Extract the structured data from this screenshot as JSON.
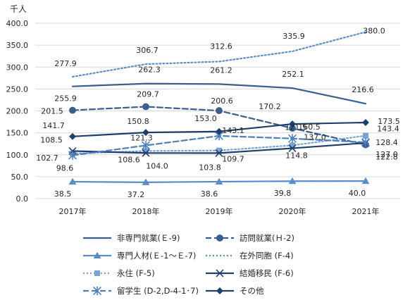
{
  "chart_data": {
    "type": "line",
    "unit_label": "千人",
    "categories": [
      "2017年",
      "2018年",
      "2019年",
      "2020年",
      "2021年"
    ],
    "ylim": [
      0,
      400
    ],
    "yticks": [
      "0.0",
      "50.0",
      "100.0",
      "150.0",
      "200.0",
      "250.0",
      "300.0",
      "350.0",
      "400.0"
    ],
    "grid": true,
    "legend_position": "bottom",
    "series": [
      {
        "name": "非専門就業(Ｅ-9)",
        "values": [
          255.9,
          262.3,
          261.2,
          252.1,
          216.6
        ],
        "color": "#3a5f8f",
        "style": "solid",
        "marker": "none"
      },
      {
        "name": "訪問就業(Ｈ-2)",
        "values": [
          201.5,
          209.7,
          200.6,
          160.5,
          122.8
        ],
        "color": "#3a5f8f",
        "style": "dash",
        "marker": "circle"
      },
      {
        "name": "専門人材(Ｅ-1～Ｅ-7)",
        "values": [
          38.5,
          37.2,
          38.6,
          39.8,
          40.0
        ],
        "color": "#5a8cc7",
        "style": "solid",
        "marker": "triangle"
      },
      {
        "name": "在外同胞 (F-4)",
        "values": [
          277.9,
          306.7,
          312.6,
          335.9,
          380.0
        ],
        "color": "#5b8fca",
        "style": "dot",
        "marker": "none"
      },
      {
        "name": "永住 (F-5)",
        "values": [
          102.7,
          108.6,
          109.7,
          121.5,
          143.4
        ],
        "color": "#7aa3d3",
        "style": "dot",
        "marker": "square"
      },
      {
        "name": "結婚移民 (F-6)",
        "values": [
          108.5,
          104.0,
          103.8,
          114.8,
          127.0
        ],
        "color": "#1f3f6b",
        "style": "solid",
        "marker": "x"
      },
      {
        "name": "留学生 (D-2,D-4-1･7)",
        "values": [
          98.6,
          121.3,
          143.1,
          137.0,
          128.4
        ],
        "color": "#4f7fb8",
        "style": "dash",
        "marker": "star"
      },
      {
        "name": "その他",
        "values": [
          141.7,
          150.8,
          153.0,
          170.2,
          173.5
        ],
        "color": "#1f3f6b",
        "style": "solid",
        "marker": "diamond"
      }
    ],
    "data_labels": [
      {
        "text": "277.9",
        "x": 0,
        "y": 277.9
      },
      {
        "text": "306.7",
        "x": 1,
        "y": 306.7
      },
      {
        "text": "312.6",
        "x": 2,
        "y": 312.6
      },
      {
        "text": "335.9",
        "x": 3,
        "y": 335.9
      },
      {
        "text": "380.0",
        "x": 4,
        "y": 380.0
      },
      {
        "text": "255.9",
        "x": 0,
        "y": 255.9
      },
      {
        "text": "262.3",
        "x": 1,
        "y": 262.3
      },
      {
        "text": "261.2",
        "x": 2,
        "y": 261.2
      },
      {
        "text": "252.1",
        "x": 3,
        "y": 252.1
      },
      {
        "text": "216.6",
        "x": 4,
        "y": 216.6
      },
      {
        "text": "201.5",
        "x": 0,
        "y": 201.5
      },
      {
        "text": "209.7",
        "x": 1,
        "y": 209.7
      },
      {
        "text": "200.6",
        "x": 2,
        "y": 200.6
      },
      {
        "text": "160.5",
        "x": 3,
        "y": 160.5
      },
      {
        "text": "122.8",
        "x": 4,
        "y": 122.8
      },
      {
        "text": "141.7",
        "x": 0,
        "y": 141.7
      },
      {
        "text": "150.8",
        "x": 1,
        "y": 150.8
      },
      {
        "text": "153.0",
        "x": 2,
        "y": 153.0
      },
      {
        "text": "170.2",
        "x": 3,
        "y": 170.2
      },
      {
        "text": "173.5",
        "x": 4,
        "y": 173.5
      },
      {
        "text": "143.1",
        "x": 2,
        "y": 143.1
      },
      {
        "text": "143.4",
        "x": 4,
        "y": 143.4
      },
      {
        "text": "108.5",
        "x": 0,
        "y": 108.5
      },
      {
        "text": "121.3",
        "x": 1,
        "y": 121.3
      },
      {
        "text": "137.0",
        "x": 3,
        "y": 137.0
      },
      {
        "text": "128.4",
        "x": 4,
        "y": 128.4
      },
      {
        "text": "102.7",
        "x": 0,
        "y": 102.7
      },
      {
        "text": "108.6",
        "x": 1,
        "y": 108.6
      },
      {
        "text": "121.5",
        "x": 3,
        "y": 121.5
      },
      {
        "text": "127.0",
        "x": 4,
        "y": 127.0
      },
      {
        "text": "98.6",
        "x": 0,
        "y": 98.6
      },
      {
        "text": "104.0",
        "x": 1,
        "y": 104.0
      },
      {
        "text": "103.8",
        "x": 2,
        "y": 103.8
      },
      {
        "text": "109.7",
        "x": 2,
        "y": 109.7
      },
      {
        "text": "114.8",
        "x": 3,
        "y": 114.8
      },
      {
        "text": "38.5",
        "x": 0,
        "y": 38.5
      },
      {
        "text": "37.2",
        "x": 1,
        "y": 37.2
      },
      {
        "text": "38.6",
        "x": 2,
        "y": 38.6
      },
      {
        "text": "39.8",
        "x": 3,
        "y": 39.8
      },
      {
        "text": "40.0",
        "x": 4,
        "y": 40.0
      }
    ]
  }
}
